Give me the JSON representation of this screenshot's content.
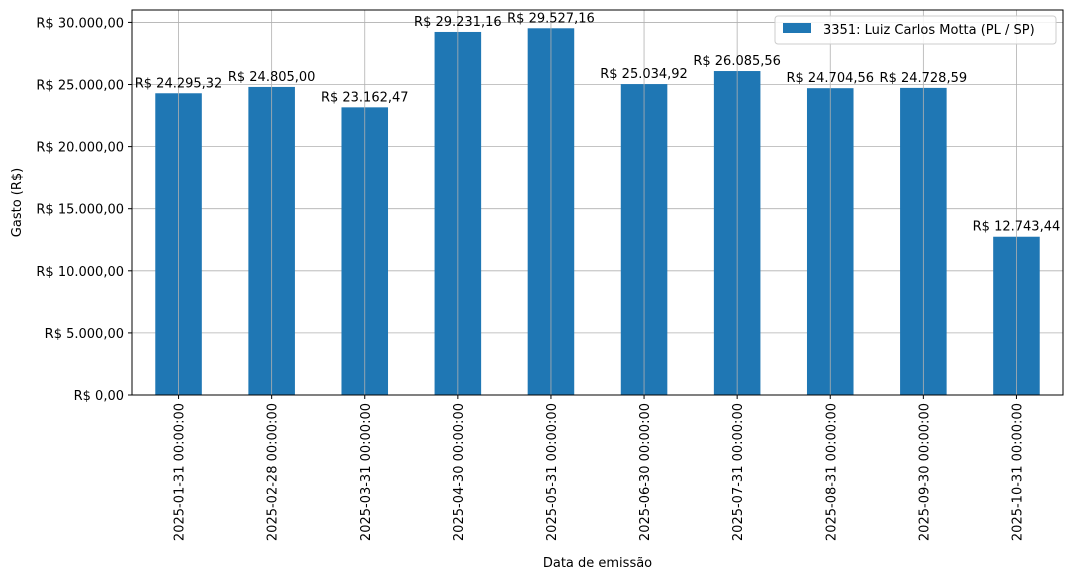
{
  "chart_data": {
    "type": "bar",
    "categories": [
      "2025-01-31 00:00:00",
      "2025-02-28 00:00:00",
      "2025-03-31 00:00:00",
      "2025-04-30 00:00:00",
      "2025-05-31 00:00:00",
      "2025-06-30 00:00:00",
      "2025-07-31 00:00:00",
      "2025-08-31 00:00:00",
      "2025-09-30 00:00:00",
      "2025-10-31 00:00:00"
    ],
    "series": [
      {
        "name": "3351: Luiz Carlos Motta (PL / SP)",
        "color": "#1f77b4",
        "values": [
          24295.32,
          24805.0,
          23162.47,
          29231.16,
          29527.16,
          25034.92,
          26085.56,
          24704.56,
          24728.59,
          12743.44
        ],
        "labels": [
          "R$ 24.295,32",
          "R$ 24.805,00",
          "R$ 23.162,47",
          "R$ 29.231,16",
          "R$ 29.527,16",
          "R$ 25.034,92",
          "R$ 26.085,56",
          "R$ 24.704,56",
          "R$ 24.728,59",
          "R$ 12.743,44"
        ]
      }
    ],
    "xlabel": "Data de emissão",
    "ylabel": "Gasto (R$)",
    "ylim": [
      0,
      31000
    ],
    "yticks": [
      0,
      5000,
      10000,
      15000,
      20000,
      25000,
      30000
    ],
    "ytick_labels": [
      "R$ 0,00",
      "R$ 5.000,00",
      "R$ 10.000,00",
      "R$ 15.000,00",
      "R$ 20.000,00",
      "R$ 25.000,00",
      "R$ 30.000,00"
    ],
    "grid": true,
    "legend": "top-right"
  }
}
